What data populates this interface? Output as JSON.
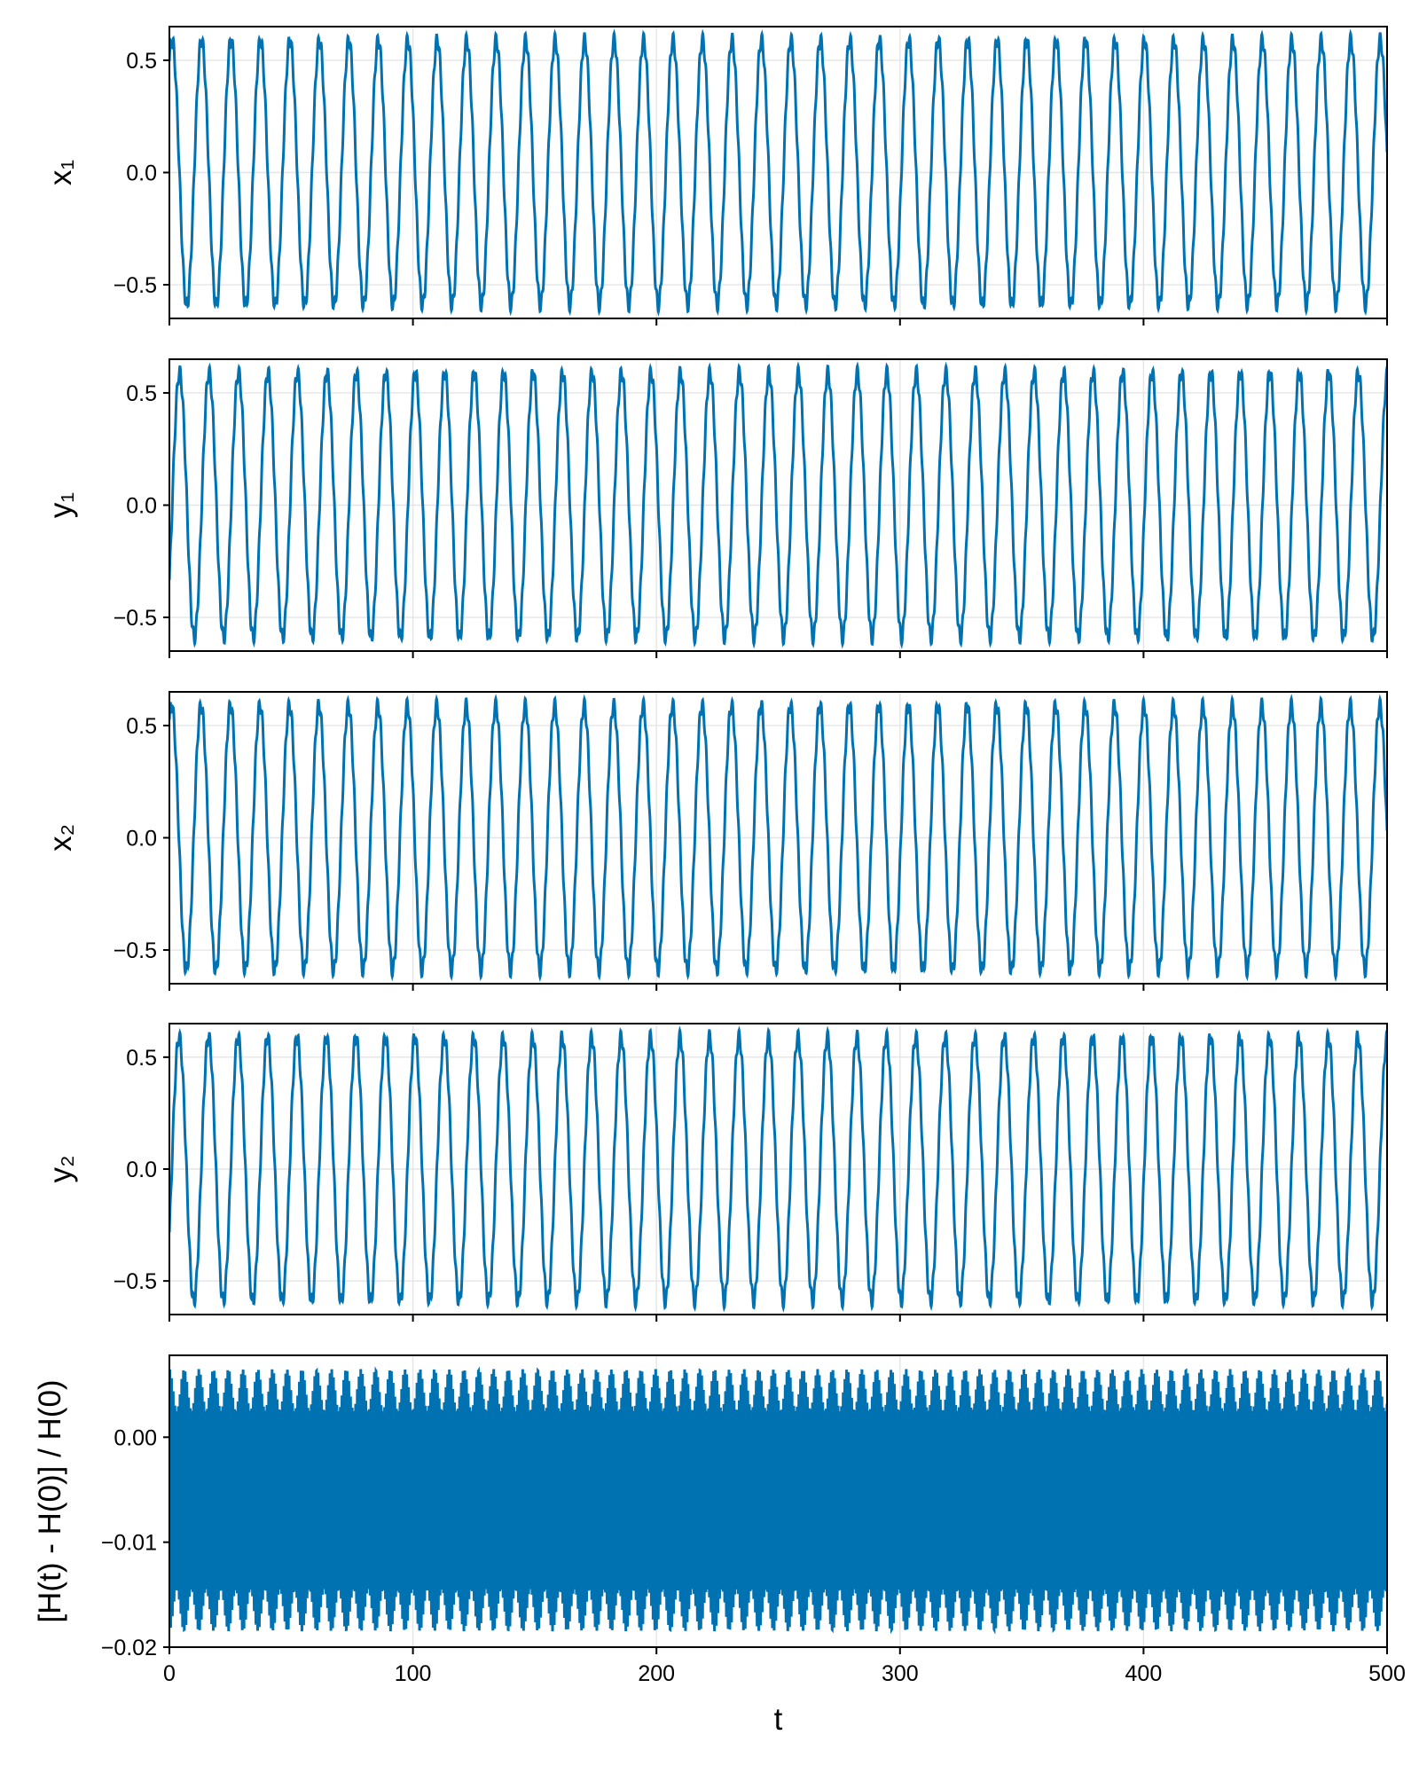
{
  "chart_data": [
    {
      "type": "line",
      "ylabel": "x₁",
      "xlabel": "",
      "xlim": [
        0,
        500
      ],
      "ylim": [
        -0.65,
        0.65
      ],
      "yticks": [
        -0.5,
        0.0,
        0.5
      ],
      "ytick_labels": [
        "−0.5",
        "0.0",
        "0.5"
      ],
      "xticks": [
        0,
        100,
        200,
        300,
        400,
        500
      ],
      "show_xtick_labels": false,
      "grid": true,
      "color": "#0072B2",
      "series": [
        {
          "kind": "oscillation",
          "amplitude": 0.59,
          "period": 12.1,
          "phase": 1.0,
          "fine_amplitude": 0.03,
          "fine_period": 1.35
        }
      ]
    },
    {
      "type": "line",
      "ylabel": "y₁",
      "xlabel": "",
      "xlim": [
        0,
        500
      ],
      "ylim": [
        -0.65,
        0.65
      ],
      "yticks": [
        -0.5,
        0.0,
        0.5
      ],
      "ytick_labels": [
        "−0.5",
        "0.0",
        "0.5"
      ],
      "xticks": [
        0,
        100,
        200,
        300,
        400,
        500
      ],
      "show_xtick_labels": false,
      "grid": true,
      "color": "#0072B2",
      "series": [
        {
          "kind": "oscillation",
          "amplitude": 0.59,
          "period": 12.1,
          "phase": -0.6,
          "fine_amplitude": 0.03,
          "fine_period": 1.35
        }
      ]
    },
    {
      "type": "line",
      "ylabel": "x₂",
      "xlabel": "",
      "xlim": [
        0,
        500
      ],
      "ylim": [
        -0.65,
        0.65
      ],
      "yticks": [
        -0.5,
        0.0,
        0.5
      ],
      "ytick_labels": [
        "−0.5",
        "0.0",
        "0.5"
      ],
      "xticks": [
        0,
        100,
        200,
        300,
        400,
        500
      ],
      "show_xtick_labels": false,
      "grid": true,
      "color": "#0072B2",
      "series": [
        {
          "kind": "oscillation",
          "amplitude": 0.59,
          "period": 12.1,
          "phase": 1.1,
          "fine_amplitude": 0.03,
          "fine_period": 1.35
        }
      ]
    },
    {
      "type": "line",
      "ylabel": "y₂",
      "xlabel": "",
      "xlim": [
        0,
        500
      ],
      "ylim": [
        -0.65,
        0.65
      ],
      "yticks": [
        -0.5,
        0.0,
        0.5
      ],
      "ytick_labels": [
        "−0.5",
        "0.0",
        "0.5"
      ],
      "xticks": [
        0,
        100,
        200,
        300,
        400,
        500
      ],
      "show_xtick_labels": false,
      "grid": true,
      "color": "#0072B2",
      "series": [
        {
          "kind": "oscillation",
          "amplitude": 0.59,
          "period": 12.1,
          "phase": -0.5,
          "fine_amplitude": 0.03,
          "fine_period": 1.35
        }
      ]
    },
    {
      "type": "line",
      "ylabel": "[H(t) - H(0)] / H(0)",
      "xlabel": "t",
      "xlim": [
        0,
        500
      ],
      "ylim": [
        -0.02,
        0.0078
      ],
      "yticks": [
        -0.02,
        -0.01,
        0.0
      ],
      "ytick_labels": [
        "−0.02",
        "−0.01",
        "0.00"
      ],
      "xticks": [
        0,
        100,
        200,
        300,
        400,
        500
      ],
      "xtick_labels": [
        "0",
        "100",
        "200",
        "300",
        "400",
        "500"
      ],
      "show_xtick_labels": true,
      "grid": true,
      "color": "#0072B2",
      "series": [
        {
          "kind": "energy_error",
          "center": -0.006,
          "fast_amplitude": 0.0105,
          "fast_period": 0.7,
          "envelope_amplitude": 0.002,
          "envelope_period": 6.05
        }
      ]
    }
  ]
}
